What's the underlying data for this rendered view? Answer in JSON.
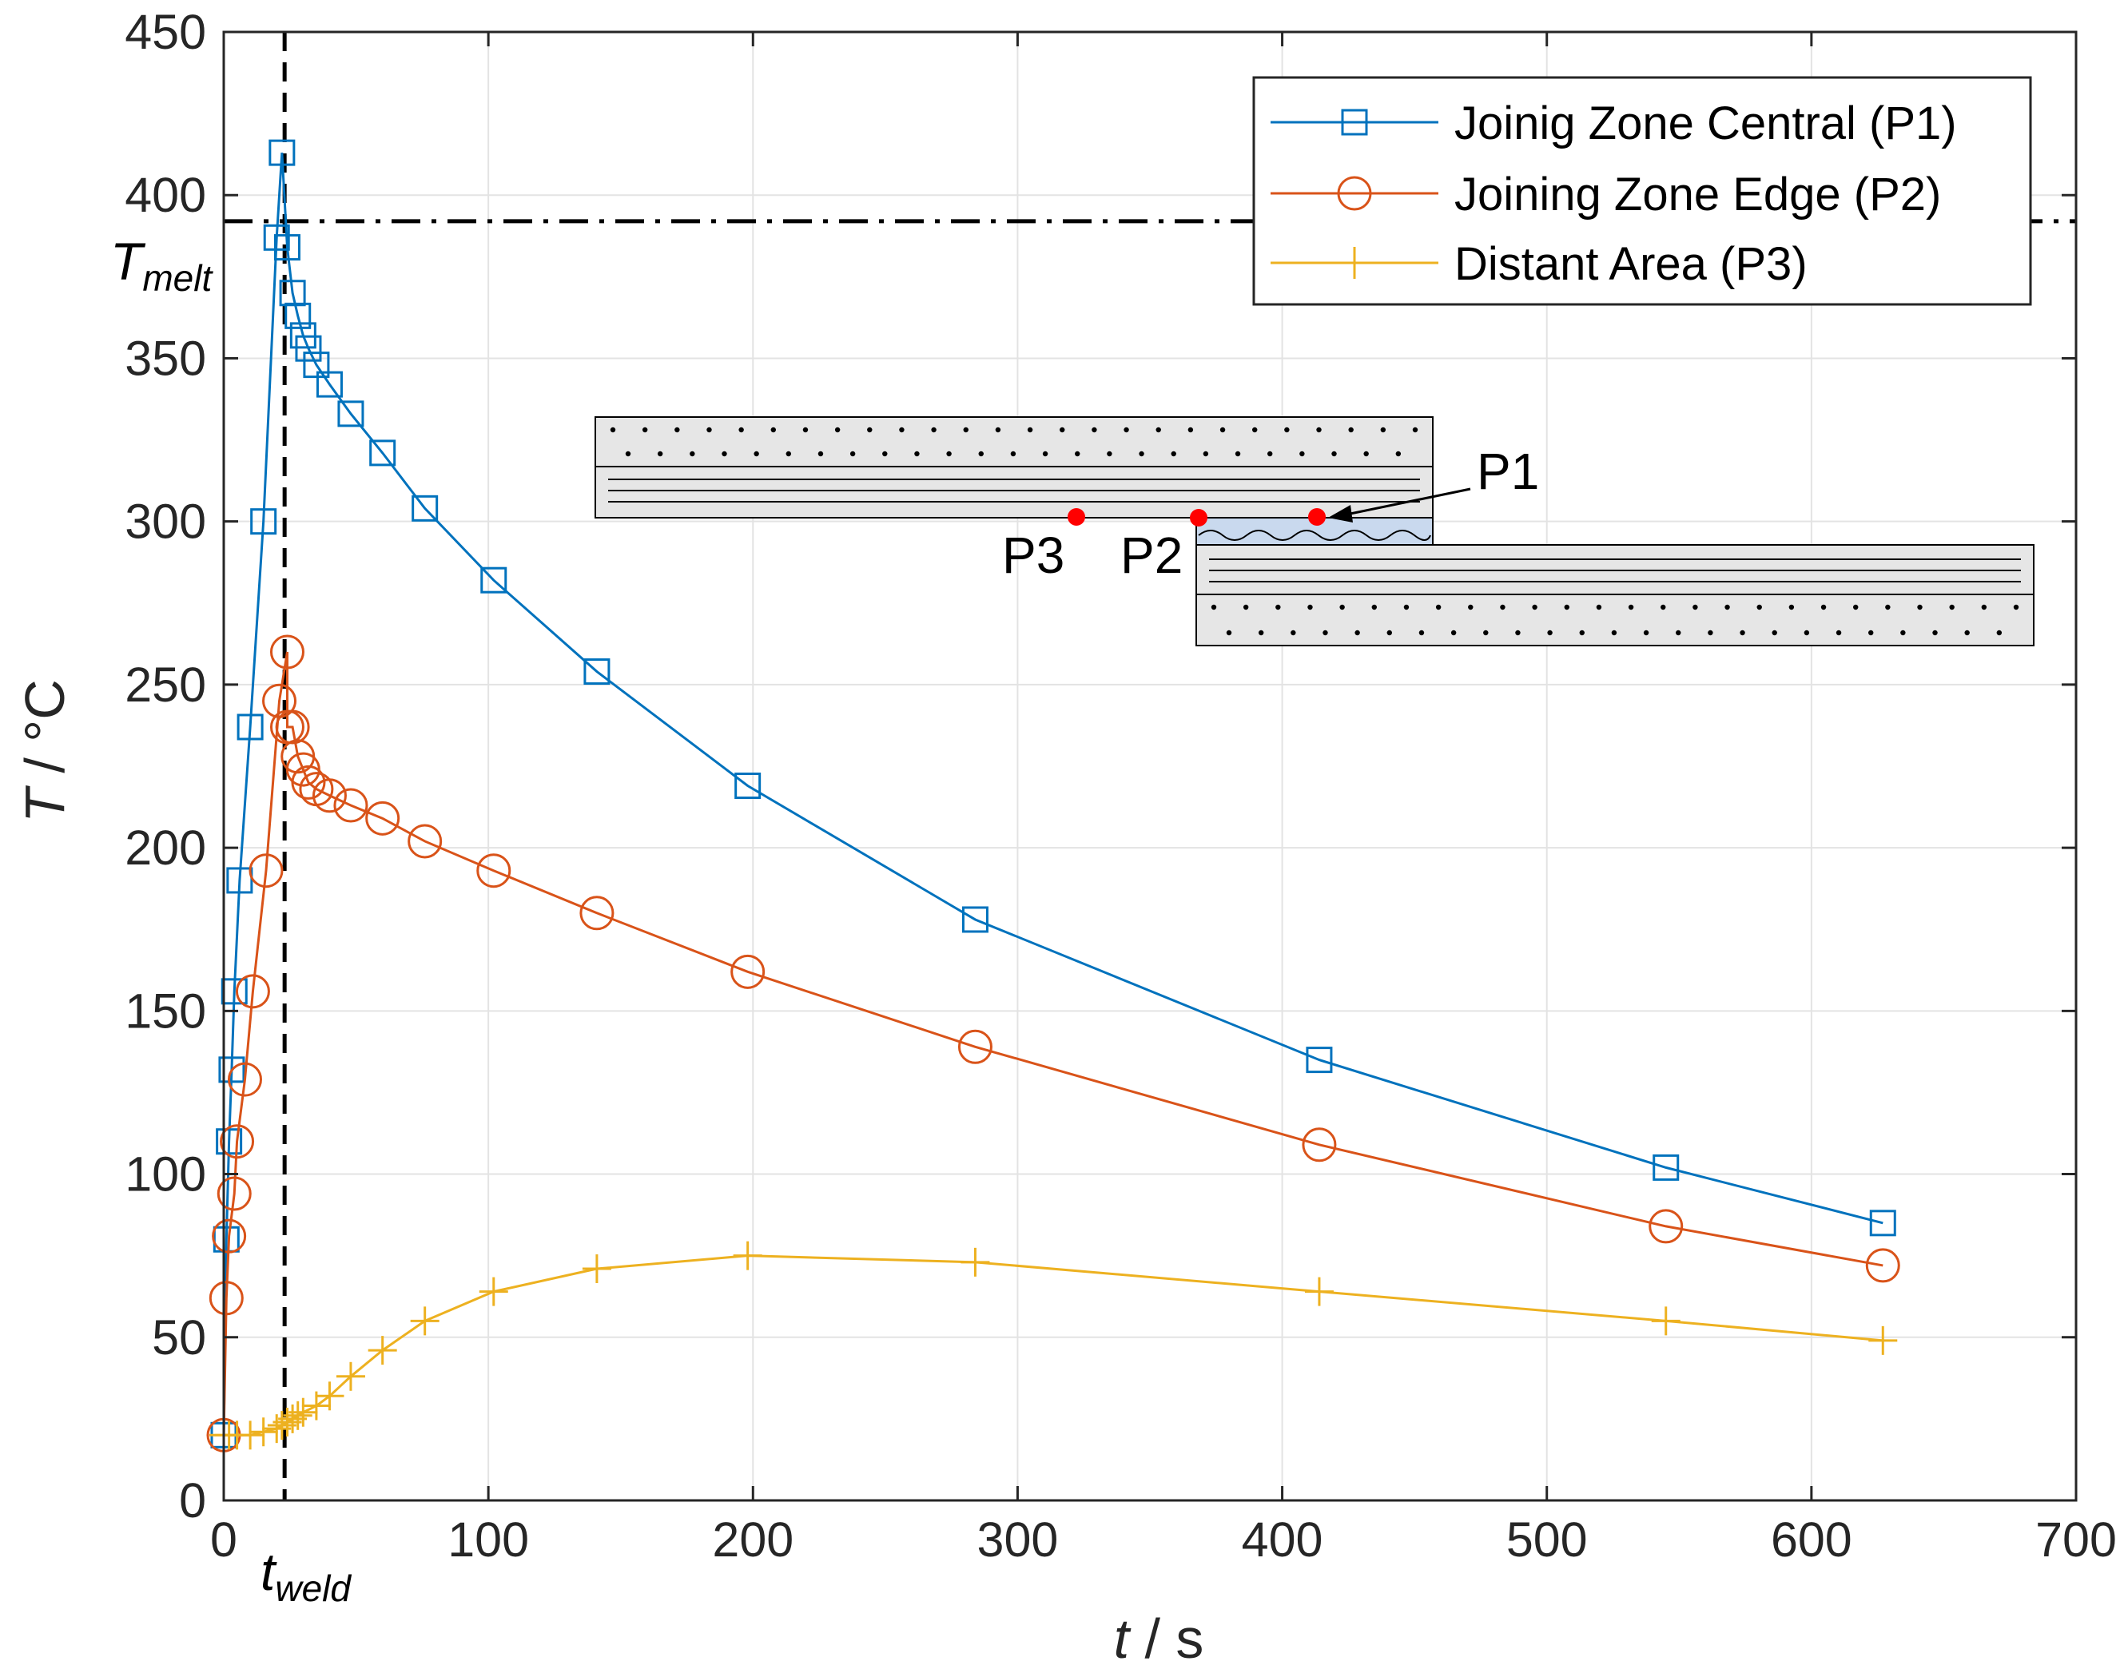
{
  "chart_data": {
    "type": "line",
    "title": "",
    "xlabel": {
      "symbol": "t",
      "unit": " / s"
    },
    "ylabel": {
      "symbol": "T",
      "unit": " / °C"
    },
    "xlim": [
      0,
      700
    ],
    "ylim": [
      0,
      450
    ],
    "xticks": [
      0,
      100,
      200,
      300,
      400,
      500,
      600,
      700
    ],
    "yticks": [
      0,
      50,
      100,
      150,
      200,
      250,
      300,
      350,
      400,
      450
    ],
    "grid": true,
    "legend_position": "top-right",
    "series": [
      {
        "name": "Joinig Zone Central (P1)",
        "color": "#0072BD",
        "marker": "square",
        "x": [
          0,
          1,
          2,
          3,
          4,
          6,
          10,
          15,
          20,
          22,
          24,
          26,
          28,
          30,
          32,
          35,
          40,
          48,
          60,
          76,
          102,
          141,
          198,
          284,
          414,
          545,
          627
        ],
        "y": [
          20,
          80,
          110,
          132,
          156,
          190,
          237,
          300,
          387,
          413,
          384,
          370,
          363,
          357,
          353,
          348,
          342,
          333,
          321,
          304,
          282,
          254,
          219,
          178,
          135,
          102,
          85
        ]
      },
      {
        "name": "Joining Zone Edge (P2)",
        "color": "#D95319",
        "marker": "circle",
        "x": [
          0,
          1,
          2,
          4,
          5,
          8,
          11,
          16,
          21,
          24,
          24,
          26,
          28,
          30,
          32,
          35,
          40,
          48,
          60,
          76,
          102,
          141,
          198,
          284,
          414,
          545,
          627
        ],
        "y": [
          20,
          62,
          81,
          94,
          110,
          129,
          156,
          193,
          245,
          260,
          237,
          237,
          228,
          224,
          220,
          218,
          216,
          213,
          209,
          202,
          193,
          180,
          162,
          139,
          109,
          84,
          72
        ]
      },
      {
        "name": "Distant Area (P3)",
        "color": "#EDB120",
        "marker": "plus",
        "x": [
          0,
          2,
          5,
          10,
          15,
          20,
          22,
          24,
          26,
          28,
          30,
          35,
          40,
          48,
          60,
          76,
          102,
          141,
          198,
          284,
          414,
          545,
          627
        ],
        "y": [
          20,
          20,
          20,
          20,
          21,
          22,
          23,
          24,
          25,
          26,
          27,
          29,
          32,
          38,
          46,
          55,
          64,
          71,
          75,
          73,
          64,
          55,
          49
        ]
      }
    ],
    "reference_lines": [
      {
        "orientation": "horizontal",
        "value": 392,
        "style": "dash-dot",
        "label_main": "T",
        "label_sub": "melt"
      },
      {
        "orientation": "vertical",
        "value": 23,
        "style": "dashed",
        "label_main": "t",
        "label_sub": "weld"
      }
    ],
    "inset_labels": {
      "p1": "P1",
      "p2": "P2",
      "p3": "P3"
    },
    "x_zero_label": "0"
  }
}
